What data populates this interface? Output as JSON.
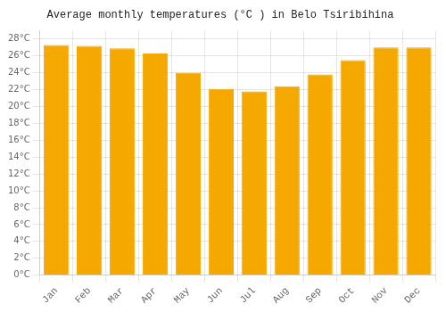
{
  "chart_data": {
    "type": "bar",
    "title": "Average monthly temperatures (°C ) in Belo Tsiribihina",
    "categories": [
      "Jan",
      "Feb",
      "Mar",
      "Apr",
      "May",
      "Jun",
      "Jul",
      "Aug",
      "Sep",
      "Oct",
      "Nov",
      "Dec"
    ],
    "values": [
      27.3,
      27.2,
      26.9,
      26.3,
      24.0,
      22.1,
      21.8,
      22.4,
      23.8,
      25.5,
      27.0,
      27.0
    ],
    "color": "#F5A800",
    "ylim": [
      0,
      29
    ],
    "yticks": [
      {
        "value": 0,
        "label": "0°C"
      },
      {
        "value": 2,
        "label": "2°C"
      },
      {
        "value": 4,
        "label": "4°C"
      },
      {
        "value": 6,
        "label": "6°C"
      },
      {
        "value": 8,
        "label": "8°C"
      },
      {
        "value": 10,
        "label": "10°C"
      },
      {
        "value": 12,
        "label": "12°C"
      },
      {
        "value": 14,
        "label": "14°C"
      },
      {
        "value": 16,
        "label": "16°C"
      },
      {
        "value": 18,
        "label": "18°C"
      },
      {
        "value": 20,
        "label": "20°C"
      },
      {
        "value": 22,
        "label": "22°C"
      },
      {
        "value": 24,
        "label": "24°C"
      },
      {
        "value": 26,
        "label": "26°C"
      },
      {
        "value": 28,
        "label": "28°C"
      }
    ],
    "grid": true
  }
}
